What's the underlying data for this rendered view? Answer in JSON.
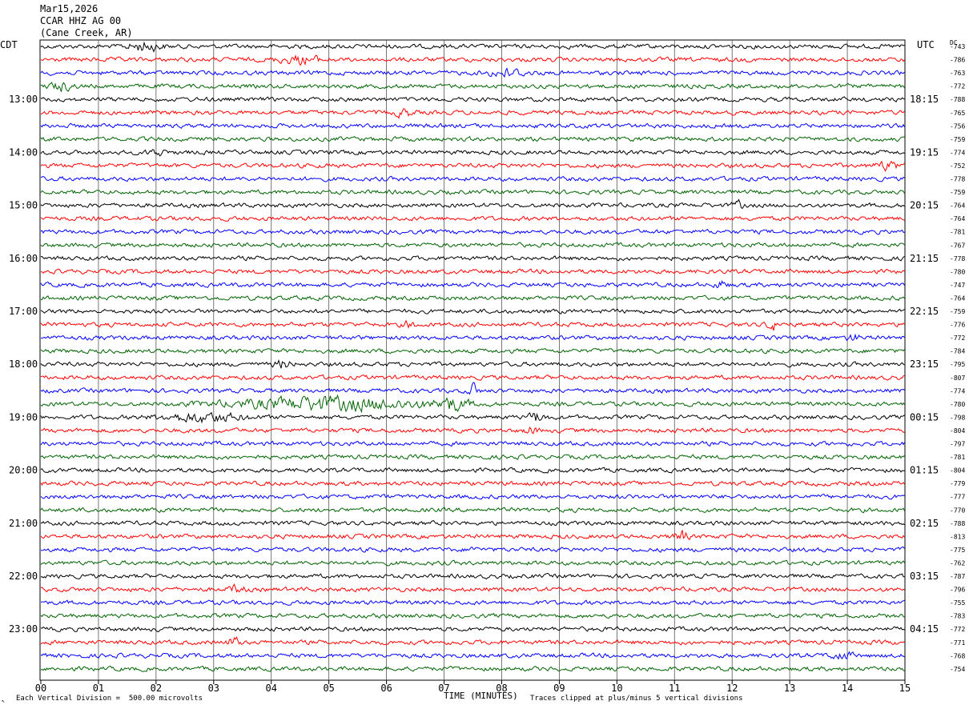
{
  "header": {
    "date": "Mar15,2026",
    "station": "CCAR HHZ AG 00",
    "location": "(Cane Creek, AR)"
  },
  "labels": {
    "left_tz": "CDT",
    "right_tz": "UTC",
    "dc": "DC",
    "xlabel": "TIME (MINUTES)",
    "scale_note": "Each Vertical Division =  500.00 microvolts",
    "clip_note": "Traces clipped at plus/minus 5 vertical divisions"
  },
  "colors": {
    "cycle": [
      "#000000",
      "#ff0000",
      "#0000ff",
      "#006400"
    ],
    "grid": "#000000"
  },
  "chart_data": {
    "type": "line",
    "x_range": [
      0,
      15
    ],
    "x_ticks": [
      "00",
      "01",
      "02",
      "03",
      "04",
      "05",
      "06",
      "07",
      "08",
      "09",
      "10",
      "11",
      "12",
      "13",
      "14",
      "15"
    ],
    "left_hour_labels": [
      "13:00",
      "14:00",
      "15:00",
      "16:00",
      "17:00",
      "18:00",
      "19:00",
      "20:00",
      "21:00",
      "22:00",
      "23:00"
    ],
    "right_hour_labels": [
      "18:15",
      "19:15",
      "20:15",
      "21:15",
      "22:15",
      "23:15",
      "00:15",
      "01:15",
      "02:15",
      "03:15",
      "04:15"
    ],
    "first_labeled_trace": 4,
    "traces_per_hour": 4,
    "dc_offsets": [
      "-743",
      "-786",
      "-763",
      "-772",
      "-788",
      "-765",
      "-756",
      "-759",
      "-774",
      "-752",
      "-778",
      "-759",
      "-764",
      "-764",
      "-781",
      "-767",
      "-778",
      "-780",
      "-747",
      "-764",
      "-759",
      "-776",
      "-772",
      "-784",
      "-795",
      "-807",
      "-774",
      "-780",
      "-798",
      "-804",
      "-797",
      "-781",
      "-804",
      "-779",
      "-777",
      "-770",
      "-788",
      "-813",
      "-775",
      "-762",
      "-787",
      "-796",
      "-755",
      "-783",
      "-772",
      "-771",
      "-768",
      "-754"
    ],
    "events": [
      {
        "trace": 0,
        "minute": 1.8,
        "amp": 2.0,
        "dur": 0.6
      },
      {
        "trace": 1,
        "minute": 4.5,
        "amp": 1.6,
        "dur": 0.8
      },
      {
        "trace": 2,
        "minute": 8.1,
        "amp": 1.6,
        "dur": 0.7
      },
      {
        "trace": 3,
        "minute": 0.35,
        "amp": 1.8,
        "dur": 0.4
      },
      {
        "trace": 5,
        "minute": 6.3,
        "amp": 1.6,
        "dur": 0.3
      },
      {
        "trace": 8,
        "minute": 2.0,
        "amp": 1.5,
        "dur": 0.3
      },
      {
        "trace": 9,
        "minute": 14.7,
        "amp": 1.7,
        "dur": 0.5
      },
      {
        "trace": 12,
        "minute": 12.1,
        "amp": 1.6,
        "dur": 0.2
      },
      {
        "trace": 18,
        "minute": 11.8,
        "amp": 1.8,
        "dur": 0.2
      },
      {
        "trace": 21,
        "minute": 12.7,
        "amp": 2.2,
        "dur": 0.2
      },
      {
        "trace": 21,
        "minute": 6.4,
        "amp": 1.5,
        "dur": 0.2
      },
      {
        "trace": 22,
        "minute": 14.1,
        "amp": 1.6,
        "dur": 0.2
      },
      {
        "trace": 24,
        "minute": 4.2,
        "amp": 1.6,
        "dur": 0.3
      },
      {
        "trace": 26,
        "minute": 7.5,
        "amp": 3.5,
        "dur": 0.15
      },
      {
        "trace": 27,
        "minute": 5.0,
        "amp": 2.8,
        "dur": 3.5
      },
      {
        "trace": 27,
        "minute": 7.1,
        "amp": 3.0,
        "dur": 0.7
      },
      {
        "trace": 28,
        "minute": 2.8,
        "amp": 1.8,
        "dur": 1.5
      },
      {
        "trace": 28,
        "minute": 8.6,
        "amp": 2.2,
        "dur": 0.3
      },
      {
        "trace": 29,
        "minute": 8.5,
        "amp": 1.6,
        "dur": 0.2
      },
      {
        "trace": 37,
        "minute": 11.1,
        "amp": 2.6,
        "dur": 0.25
      },
      {
        "trace": 38,
        "minute": 7.5,
        "amp": 1.5,
        "dur": 0.1
      },
      {
        "trace": 41,
        "minute": 3.4,
        "amp": 1.5,
        "dur": 0.3
      },
      {
        "trace": 45,
        "minute": 3.35,
        "amp": 2.5,
        "dur": 0.2
      },
      {
        "trace": 46,
        "minute": 13.9,
        "amp": 1.5,
        "dur": 0.4
      }
    ]
  }
}
